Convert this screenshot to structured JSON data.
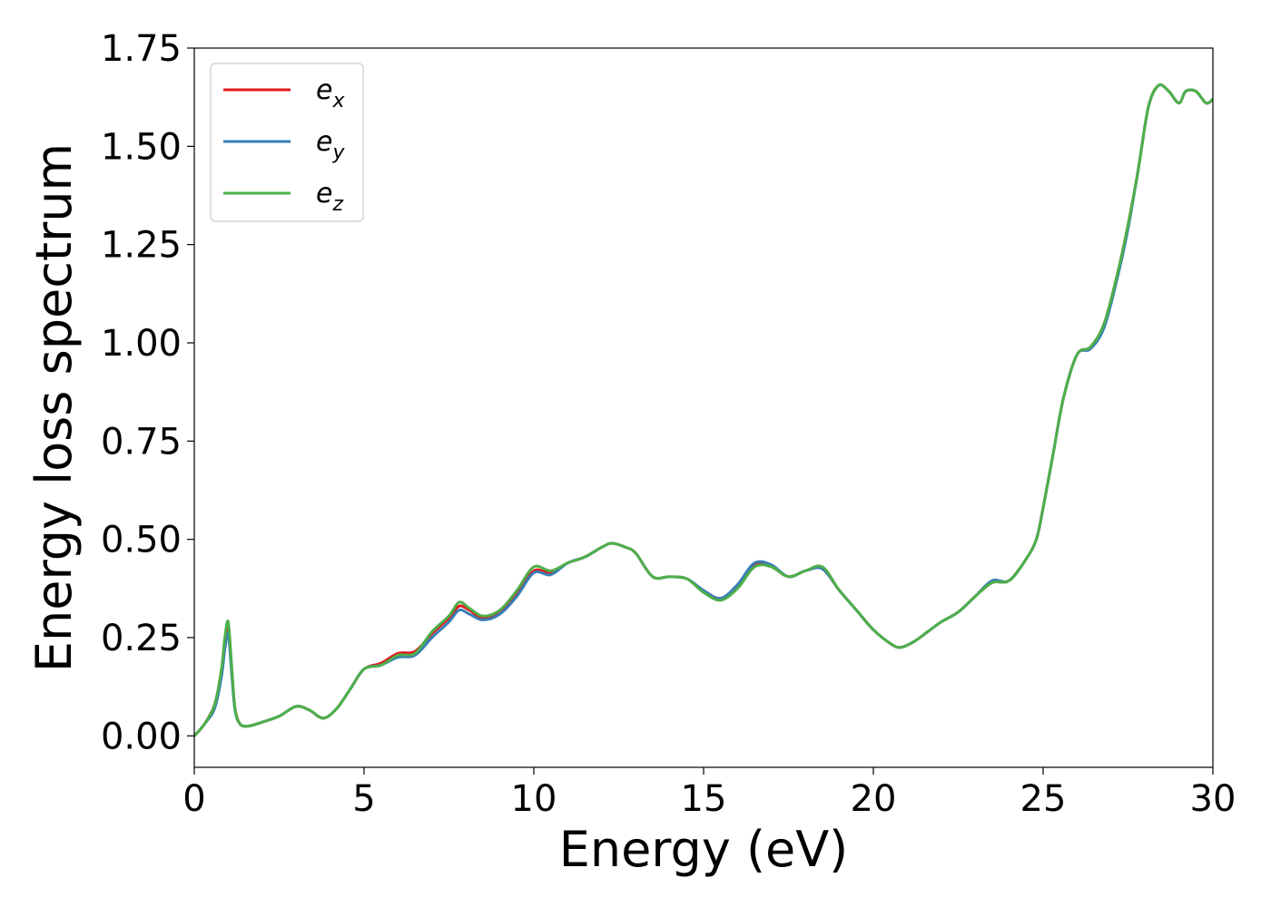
{
  "chart_data": {
    "type": "line",
    "title": "",
    "xlabel": "Energy (eV)",
    "ylabel": "Energy loss spectrum",
    "xlim": [
      0,
      30
    ],
    "ylim": [
      -0.08,
      1.75
    ],
    "xticks": [
      0,
      5,
      10,
      15,
      20,
      25,
      30
    ],
    "xtick_labels": [
      "0",
      "5",
      "10",
      "15",
      "20",
      "25",
      "30"
    ],
    "yticks": [
      0.0,
      0.25,
      0.5,
      0.75,
      1.0,
      1.25,
      1.5,
      1.75
    ],
    "ytick_labels": [
      "0.00",
      "0.25",
      "0.50",
      "0.75",
      "1.00",
      "1.25",
      "1.50",
      "1.75"
    ],
    "grid": false,
    "legend_position": "top-left",
    "series": [
      {
        "name": "e_x",
        "label_base": "e",
        "label_sub": "x",
        "color": "#e41a1c",
        "x": [
          0,
          0.3,
          0.6,
          0.8,
          0.9,
          1.0,
          1.1,
          1.2,
          1.35,
          1.6,
          2.0,
          2.5,
          3.0,
          3.4,
          3.8,
          4.2,
          4.6,
          5.0,
          5.5,
          6.0,
          6.5,
          7.0,
          7.5,
          7.8,
          8.1,
          8.5,
          9.0,
          9.5,
          10.0,
          10.5,
          11.0,
          11.5,
          12.0,
          12.3,
          12.7,
          13.0,
          13.5,
          14.0,
          14.5,
          15.0,
          15.5,
          16.0,
          16.5,
          17.0,
          17.5,
          18.0,
          18.5,
          19.0,
          19.5,
          20.0,
          20.5,
          20.8,
          21.2,
          21.6,
          22.0,
          22.5,
          23.0,
          23.5,
          24.0,
          24.5,
          24.8,
          25.0,
          25.3,
          25.6,
          26.0,
          26.4,
          26.8,
          27.2,
          27.5,
          27.8,
          28.1,
          28.4,
          28.7,
          29.0,
          29.2,
          29.5,
          29.8,
          30.0
        ],
        "y": [
          0.0,
          0.03,
          0.08,
          0.16,
          0.24,
          0.28,
          0.17,
          0.07,
          0.03,
          0.025,
          0.035,
          0.05,
          0.075,
          0.065,
          0.045,
          0.07,
          0.12,
          0.17,
          0.185,
          0.21,
          0.215,
          0.26,
          0.3,
          0.33,
          0.32,
          0.3,
          0.315,
          0.36,
          0.42,
          0.415,
          0.44,
          0.455,
          0.48,
          0.49,
          0.48,
          0.465,
          0.405,
          0.405,
          0.4,
          0.37,
          0.35,
          0.38,
          0.435,
          0.43,
          0.405,
          0.42,
          0.425,
          0.37,
          0.32,
          0.27,
          0.235,
          0.225,
          0.24,
          0.265,
          0.29,
          0.315,
          0.355,
          0.39,
          0.395,
          0.45,
          0.5,
          0.58,
          0.72,
          0.86,
          0.97,
          0.99,
          1.05,
          1.18,
          1.3,
          1.44,
          1.6,
          1.655,
          1.64,
          1.61,
          1.64,
          1.64,
          1.61,
          1.62
        ]
      },
      {
        "name": "e_y",
        "label_base": "e",
        "label_sub": "y",
        "color": "#377eb8",
        "x": [
          0,
          0.3,
          0.6,
          0.8,
          0.9,
          1.0,
          1.1,
          1.2,
          1.35,
          1.6,
          2.0,
          2.5,
          3.0,
          3.4,
          3.8,
          4.2,
          4.6,
          5.0,
          5.5,
          6.0,
          6.5,
          7.0,
          7.5,
          7.8,
          8.1,
          8.5,
          9.0,
          9.5,
          10.0,
          10.5,
          11.0,
          11.5,
          12.0,
          12.3,
          12.7,
          13.0,
          13.5,
          14.0,
          14.5,
          15.0,
          15.5,
          16.0,
          16.5,
          17.0,
          17.5,
          18.0,
          18.5,
          19.0,
          19.5,
          20.0,
          20.5,
          20.8,
          21.2,
          21.6,
          22.0,
          22.5,
          23.0,
          23.5,
          24.0,
          24.5,
          24.8,
          25.0,
          25.3,
          25.6,
          26.0,
          26.4,
          26.8,
          27.2,
          27.5,
          27.8,
          28.1,
          28.4,
          28.7,
          29.0,
          29.2,
          29.5,
          29.8,
          30.0
        ],
        "y": [
          0.0,
          0.03,
          0.07,
          0.15,
          0.22,
          0.26,
          0.16,
          0.065,
          0.03,
          0.025,
          0.035,
          0.05,
          0.075,
          0.065,
          0.045,
          0.07,
          0.12,
          0.17,
          0.18,
          0.2,
          0.205,
          0.25,
          0.29,
          0.32,
          0.31,
          0.295,
          0.31,
          0.355,
          0.415,
          0.41,
          0.44,
          0.455,
          0.48,
          0.49,
          0.48,
          0.465,
          0.405,
          0.405,
          0.4,
          0.37,
          0.35,
          0.385,
          0.44,
          0.435,
          0.405,
          0.42,
          0.425,
          0.37,
          0.32,
          0.27,
          0.235,
          0.225,
          0.24,
          0.265,
          0.29,
          0.315,
          0.355,
          0.395,
          0.395,
          0.45,
          0.5,
          0.58,
          0.72,
          0.86,
          0.97,
          0.985,
          1.04,
          1.17,
          1.29,
          1.44,
          1.6,
          1.655,
          1.64,
          1.61,
          1.64,
          1.64,
          1.61,
          1.62
        ]
      },
      {
        "name": "e_z",
        "label_base": "e",
        "label_sub": "z",
        "color": "#4daf4a",
        "x": [
          0,
          0.3,
          0.6,
          0.8,
          0.9,
          1.0,
          1.1,
          1.2,
          1.35,
          1.6,
          2.0,
          2.5,
          3.0,
          3.4,
          3.8,
          4.2,
          4.6,
          5.0,
          5.5,
          6.0,
          6.5,
          7.0,
          7.5,
          7.8,
          8.1,
          8.5,
          9.0,
          9.5,
          10.0,
          10.5,
          11.0,
          11.5,
          12.0,
          12.3,
          12.7,
          13.0,
          13.5,
          14.0,
          14.5,
          15.0,
          15.5,
          16.0,
          16.5,
          17.0,
          17.5,
          18.0,
          18.5,
          19.0,
          19.5,
          20.0,
          20.5,
          20.8,
          21.2,
          21.6,
          22.0,
          22.5,
          23.0,
          23.5,
          24.0,
          24.5,
          24.8,
          25.0,
          25.3,
          25.6,
          26.0,
          26.4,
          26.8,
          27.2,
          27.5,
          27.8,
          28.1,
          28.4,
          28.7,
          29.0,
          29.2,
          29.5,
          29.8,
          30.0
        ],
        "y": [
          0.0,
          0.03,
          0.08,
          0.17,
          0.25,
          0.29,
          0.18,
          0.07,
          0.03,
          0.025,
          0.035,
          0.05,
          0.075,
          0.065,
          0.045,
          0.07,
          0.12,
          0.17,
          0.18,
          0.205,
          0.21,
          0.265,
          0.305,
          0.34,
          0.325,
          0.305,
          0.32,
          0.37,
          0.43,
          0.42,
          0.44,
          0.455,
          0.48,
          0.49,
          0.48,
          0.465,
          0.405,
          0.405,
          0.4,
          0.365,
          0.345,
          0.375,
          0.43,
          0.43,
          0.405,
          0.42,
          0.43,
          0.37,
          0.32,
          0.27,
          0.235,
          0.225,
          0.24,
          0.265,
          0.29,
          0.315,
          0.355,
          0.39,
          0.395,
          0.45,
          0.5,
          0.58,
          0.72,
          0.86,
          0.97,
          0.99,
          1.05,
          1.18,
          1.3,
          1.44,
          1.6,
          1.655,
          1.64,
          1.61,
          1.64,
          1.64,
          1.61,
          1.62
        ]
      }
    ]
  }
}
